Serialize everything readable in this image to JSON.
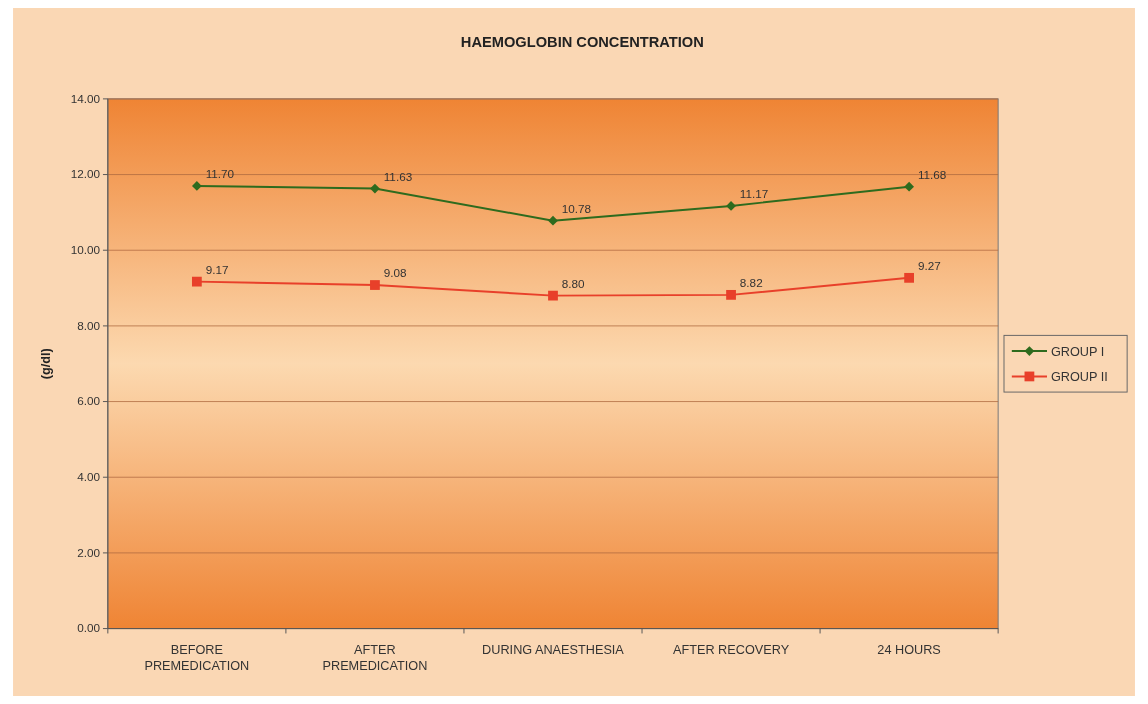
{
  "chart_data": {
    "type": "line",
    "title": "HAEMOGLOBIN CONCENTRATION",
    "ylabel": "(g/dl)",
    "categories": [
      "BEFORE\nPREMEDICATION",
      "AFTER\nPREMEDICATION",
      "DURING ANAESTHESIA",
      "AFTER RECOVERY",
      "24 HOURS"
    ],
    "series": [
      {
        "name": "GROUP I",
        "color": "#2e6b1e",
        "marker": "diamond",
        "values": [
          11.7,
          11.63,
          10.78,
          11.17,
          11.68
        ],
        "value_labels": [
          "11.70",
          "11.63",
          "10.78",
          "11.17",
          "11.68"
        ]
      },
      {
        "name": "GROUP II",
        "color": "#e8402a",
        "marker": "square",
        "values": [
          9.17,
          9.08,
          8.8,
          8.82,
          9.27
        ],
        "value_labels": [
          "9.17",
          "9.08",
          "8.80",
          "8.82",
          "9.27"
        ]
      }
    ],
    "ylim": [
      0,
      14
    ],
    "yticks": [
      {
        "value": 0,
        "label": "0.00"
      },
      {
        "value": 2,
        "label": "2.00"
      },
      {
        "value": 4,
        "label": "4.00"
      },
      {
        "value": 6,
        "label": "6.00"
      },
      {
        "value": 8,
        "label": "8.00"
      },
      {
        "value": 10,
        "label": "10.00"
      },
      {
        "value": 12,
        "label": "12.00"
      },
      {
        "value": 14,
        "label": "14.00"
      }
    ],
    "grid": "y",
    "legend": "right",
    "line_style": "solid"
  }
}
